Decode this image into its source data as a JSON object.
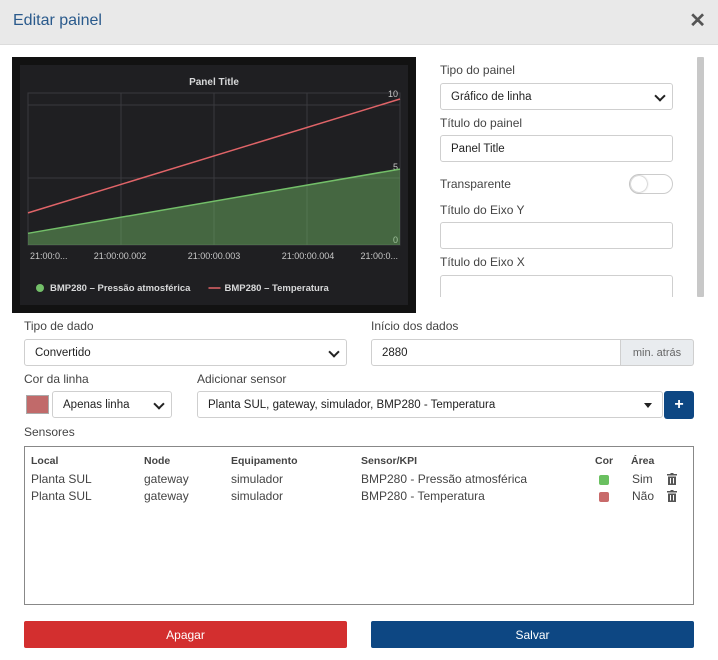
{
  "dialog": {
    "title": "Editar painel",
    "close_icon": "close-icon"
  },
  "chart_data": {
    "type": "area",
    "title": "Panel Title",
    "x": [
      "21:00:0...",
      "21:00:00.002",
      "21:00:00.003",
      "21:00:00.004",
      "21:00:0..."
    ],
    "y_ticks": [
      "10",
      "5",
      "0"
    ],
    "ylim": [
      0,
      10
    ],
    "series": [
      {
        "name": "BMP280 – Pressão atmosférica",
        "color": "#73bf69",
        "fill": true,
        "start": 0.8,
        "end": 5.2
      },
      {
        "name": "BMP280 – Temperatura",
        "color": "#e06468",
        "fill": false,
        "start": 2.2,
        "end": 10.0
      }
    ],
    "legend_placement": "bottom-left",
    "background": "#1f1f22",
    "grid": true
  },
  "form": {
    "tipo_painel": {
      "label": "Tipo do painel",
      "value": "Gráfico de linha"
    },
    "titulo_painel": {
      "label": "Título do painel",
      "value": "Panel Title"
    },
    "transparente": {
      "label": "Transparente",
      "checked": false
    },
    "titulo_eixo_y": {
      "label": "Título do Eixo Y",
      "value": ""
    },
    "titulo_eixo_x": {
      "label": "Título do Eixo X",
      "value": ""
    },
    "tipo_dado": {
      "label": "Tipo de dado",
      "value": "Convertido"
    },
    "inicio_dados": {
      "label": "Início dos dados",
      "value": "2880",
      "addon": "min. atrás"
    },
    "cor_linha": {
      "label": "Cor da linha",
      "color": "#c16a6a",
      "value": "Apenas linha"
    },
    "adicionar_sensor": {
      "label": "Adicionar sensor",
      "value": "Planta SUL, gateway, simulador, BMP280 - Temperatura",
      "button": "+"
    }
  },
  "sensores": {
    "label": "Sensores",
    "columns": [
      "Local",
      "Node",
      "Equipamento",
      "Sensor/KPI",
      "Cor",
      "Área"
    ],
    "rows": [
      {
        "local": "Planta SUL",
        "node": "gateway",
        "equipamento": "simulador",
        "sensor": "BMP280 - Pressão atmosférica",
        "cor": "#6ac060",
        "area": "Sim"
      },
      {
        "local": "Planta SUL",
        "node": "gateway",
        "equipamento": "simulador",
        "sensor": "BMP280 - Temperatura",
        "cor": "#c86a6a",
        "area": "Não"
      }
    ]
  },
  "buttons": {
    "apagar": "Apagar",
    "salvar": "Salvar"
  },
  "colors": {
    "danger": "#d32f2f",
    "primary": "#0d4783",
    "title": "#2a5a8c"
  }
}
